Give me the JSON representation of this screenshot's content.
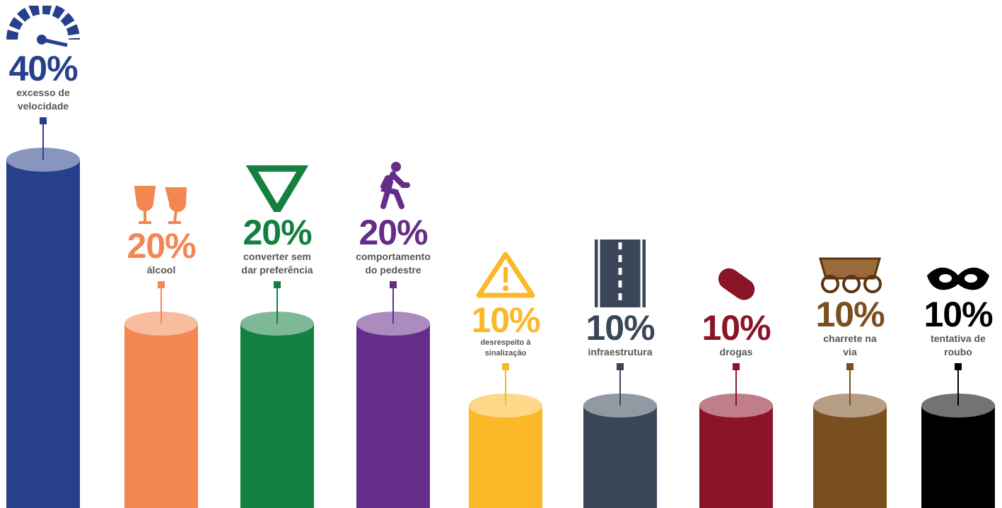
{
  "chart_data": {
    "type": "cylinder",
    "categories": [
      "excesso de velocidade",
      "álcool",
      "converter sem dar preferência",
      "comportamento do pedestre",
      "desrespeito à sinalização",
      "infraestrutura",
      "drogas",
      "charrete na via",
      "tentativa de roubo"
    ],
    "values": [
      40,
      20,
      20,
      20,
      10,
      10,
      10,
      10,
      10
    ],
    "value_labels": [
      "40%",
      "20%",
      "20%",
      "20%",
      "10%",
      "10%",
      "10%",
      "10%",
      "10%"
    ],
    "colors": [
      "#27408b",
      "#f38651",
      "#138040",
      "#642d8a",
      "#fbb829",
      "#3a4657",
      "#8a1529",
      "#7a4f1f",
      "#000000"
    ]
  }
}
